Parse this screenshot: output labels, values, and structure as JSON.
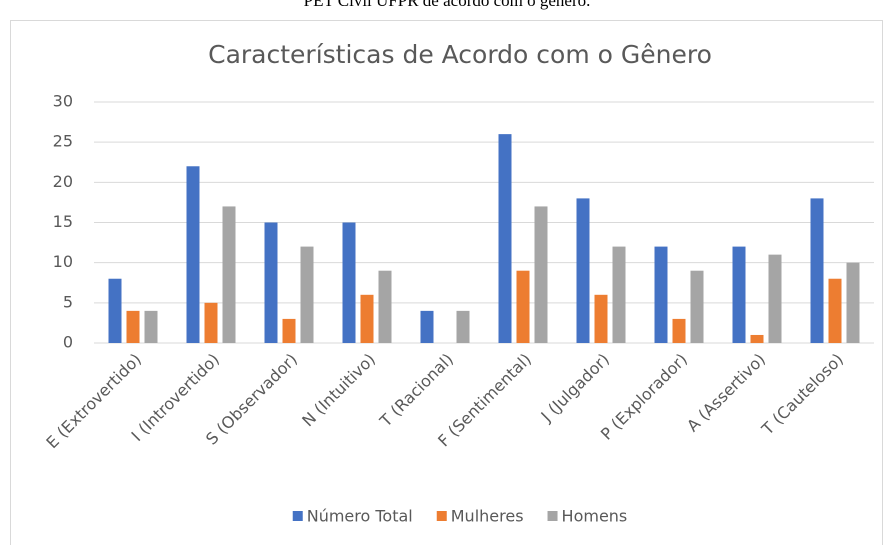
{
  "caption": "PET Civil UFPR de acordo com o gênero.",
  "chart_data": {
    "type": "bar",
    "title": "Características de Acordo com o Gênero",
    "categories": [
      "E (Extrovertido)",
      "I (Introvertido)",
      "S (Observador)",
      "N (Intuitivo)",
      "T (Racional)",
      "F (Sentimental)",
      "J (Julgador)",
      "P (Explorador)",
      "A (Assertivo)",
      "T (Cauteloso)"
    ],
    "series": [
      {
        "name": "Número Total",
        "color": "#4472c4",
        "values": [
          8,
          22,
          15,
          15,
          4,
          26,
          18,
          12,
          12,
          18
        ]
      },
      {
        "name": "Mulheres",
        "color": "#ed7d31",
        "values": [
          4,
          5,
          3,
          6,
          0,
          9,
          6,
          3,
          1,
          8
        ]
      },
      {
        "name": "Homens",
        "color": "#a5a5a5",
        "values": [
          4,
          17,
          12,
          9,
          4,
          17,
          12,
          9,
          11,
          10
        ]
      }
    ],
    "ylim": [
      0,
      30
    ],
    "yticks": [
      0,
      5,
      10,
      15,
      20,
      25,
      30
    ],
    "grid": true,
    "legend": "bottom"
  }
}
